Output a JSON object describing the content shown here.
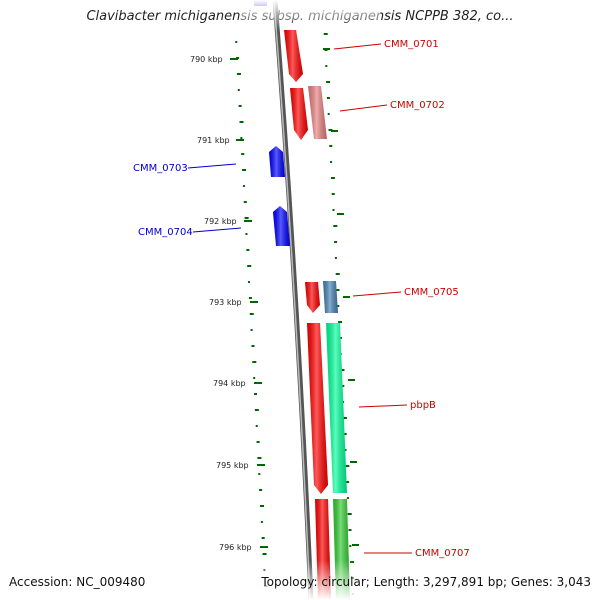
{
  "title": "Clavibacter michiganensis subsp. michiganensis NCPPB 382, co...",
  "accession_text": "Accession: NC_009480",
  "summary_text": "Topology: circular; Length: 3,297,891 bp; Genes: 3,043",
  "scale_labels": [
    "790 kbp",
    "791 kbp",
    "792 kbp",
    "793 kbp",
    "794 kbp",
    "795 kbp",
    "796 kbp"
  ],
  "genes": [
    {
      "label": "",
      "color": "#0000ff"
    },
    {
      "label": "CMM_0701",
      "color": "#ff0000"
    },
    {
      "label": "CMM_0702",
      "color": "#e88080"
    },
    {
      "label": "CMM_0703",
      "color": "#0000ff"
    },
    {
      "label": "CMM_0704",
      "color": "#0000ff"
    },
    {
      "label": "CMM_0705",
      "color": "#4682b4"
    },
    {
      "label": "",
      "color": "#ff0000"
    },
    {
      "label": "pbpB",
      "color": "#00ff99"
    },
    {
      "label": "",
      "color": "#ff0000"
    },
    {
      "label": "CMM_0707",
      "color": "#33cc33"
    }
  ],
  "colors": {
    "backbone": "#888888",
    "forward_label": "#cc0000",
    "reverse_label": "#0000cc",
    "gc_ticks": "#006600",
    "feature_red": "#ff0000"
  }
}
